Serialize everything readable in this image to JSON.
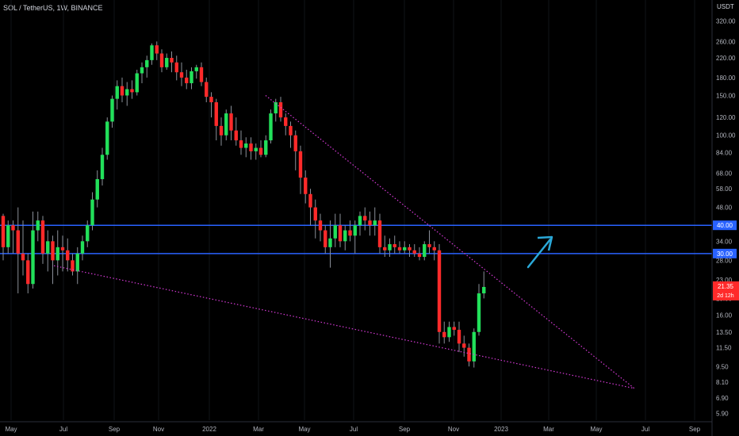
{
  "header": {
    "title": "SOL / TetherUS, 1W, BINANCE",
    "currency": "USDT"
  },
  "colors": {
    "up": "#22e05a",
    "down": "#ff2a2a",
    "level": "#2962ff",
    "trend": "#d63ad6",
    "arrow": "#2aa8d8",
    "grid": "#111318"
  },
  "price_label": {
    "value": "21.35",
    "countdown": "2d 12h"
  },
  "chart_data": {
    "type": "candlestick",
    "interval": "1W",
    "yscale": "log",
    "ylim": [
      5.5,
      360
    ],
    "y_ticks": [
      "320.00",
      "260.00",
      "220.00",
      "180.00",
      "150.00",
      "120.00",
      "100.00",
      "84.00",
      "68.00",
      "58.00",
      "48.00",
      "34.00",
      "28.00",
      "23.00",
      "19.00",
      "16.00",
      "13.50",
      "11.50",
      "9.50",
      "8.10",
      "6.90",
      "5.90"
    ],
    "x_ticks": [
      "May",
      "Jul",
      "Sep",
      "Nov",
      "2022",
      "Mar",
      "May",
      "Jul",
      "Sep",
      "Nov",
      "2023",
      "Mar",
      "May",
      "Jul",
      "Sep"
    ],
    "levels": [
      {
        "label": "40.00",
        "value": 40
      },
      {
        "label": "30.00",
        "value": 30
      }
    ],
    "candles": [
      [
        44,
        45,
        28,
        32
      ],
      [
        32,
        42,
        30,
        40
      ],
      [
        40,
        42,
        30,
        38
      ],
      [
        38,
        48,
        20,
        30
      ],
      [
        30,
        42,
        24,
        28
      ],
      [
        28,
        30,
        20,
        22
      ],
      [
        22,
        46,
        21,
        38
      ],
      [
        38,
        46,
        34,
        42
      ],
      [
        42,
        44,
        27,
        30
      ],
      [
        30,
        38,
        25,
        34
      ],
      [
        34,
        36,
        22,
        28
      ],
      [
        28,
        38,
        24,
        32
      ],
      [
        32,
        36,
        25,
        31
      ],
      [
        31,
        35,
        25,
        28
      ],
      [
        28,
        30,
        24,
        25
      ],
      [
        25,
        32,
        22,
        30
      ],
      [
        30,
        36,
        28,
        34
      ],
      [
        34,
        42,
        32,
        40
      ],
      [
        40,
        56,
        38,
        52
      ],
      [
        52,
        70,
        48,
        64
      ],
      [
        64,
        88,
        60,
        82
      ],
      [
        82,
        120,
        78,
        115
      ],
      [
        115,
        150,
        108,
        145
      ],
      [
        145,
        175,
        130,
        165
      ],
      [
        165,
        180,
        140,
        150
      ],
      [
        150,
        172,
        135,
        160
      ],
      [
        160,
        175,
        145,
        155
      ],
      [
        155,
        195,
        150,
        188
      ],
      [
        188,
        210,
        170,
        200
      ],
      [
        200,
        225,
        180,
        215
      ],
      [
        215,
        255,
        205,
        250
      ],
      [
        250,
        260,
        215,
        230
      ],
      [
        230,
        240,
        190,
        200
      ],
      [
        200,
        230,
        195,
        220
      ],
      [
        220,
        235,
        190,
        210
      ],
      [
        210,
        225,
        175,
        190
      ],
      [
        190,
        210,
        165,
        180
      ],
      [
        180,
        195,
        160,
        170
      ],
      [
        170,
        200,
        160,
        192
      ],
      [
        192,
        205,
        178,
        200
      ],
      [
        200,
        210,
        165,
        172
      ],
      [
        172,
        180,
        140,
        148
      ],
      [
        148,
        155,
        120,
        140
      ],
      [
        140,
        145,
        95,
        110
      ],
      [
        110,
        120,
        90,
        100
      ],
      [
        100,
        130,
        95,
        125
      ],
      [
        125,
        135,
        95,
        105
      ],
      [
        105,
        120,
        90,
        95
      ],
      [
        95,
        105,
        82,
        88
      ],
      [
        88,
        98,
        80,
        92
      ],
      [
        92,
        98,
        78,
        85
      ],
      [
        85,
        92,
        78,
        88
      ],
      [
        88,
        95,
        80,
        82
      ],
      [
        82,
        100,
        80,
        95
      ],
      [
        95,
        130,
        92,
        125
      ],
      [
        125,
        145,
        115,
        140
      ],
      [
        140,
        148,
        115,
        120
      ],
      [
        120,
        125,
        100,
        110
      ],
      [
        110,
        115,
        88,
        100
      ],
      [
        100,
        105,
        70,
        85
      ],
      [
        85,
        90,
        55,
        65
      ],
      [
        65,
        70,
        50,
        55
      ],
      [
        55,
        58,
        40,
        48
      ],
      [
        48,
        52,
        35,
        42
      ],
      [
        42,
        45,
        34,
        38
      ],
      [
        38,
        40,
        30,
        32
      ],
      [
        32,
        42,
        26,
        35
      ],
      [
        35,
        45,
        32,
        40
      ],
      [
        40,
        45,
        32,
        34
      ],
      [
        34,
        40,
        31,
        38
      ],
      [
        38,
        42,
        34,
        36
      ],
      [
        36,
        42,
        30,
        40
      ],
      [
        40,
        46,
        36,
        44
      ],
      [
        44,
        48,
        38,
        42
      ],
      [
        42,
        46,
        36,
        40
      ],
      [
        40,
        48,
        36,
        42
      ],
      [
        42,
        45,
        30,
        32
      ],
      [
        32,
        36,
        29,
        31
      ],
      [
        31,
        35,
        29,
        33
      ],
      [
        33,
        36,
        30,
        32
      ],
      [
        32,
        34,
        30,
        31
      ],
      [
        31,
        34,
        30,
        32
      ],
      [
        32,
        33,
        29,
        31
      ],
      [
        31,
        33,
        29,
        30
      ],
      [
        30,
        32,
        28,
        29
      ],
      [
        29,
        34,
        28,
        33
      ],
      [
        33,
        38,
        30,
        32
      ],
      [
        32,
        34,
        28,
        31
      ],
      [
        31,
        33,
        12,
        13.5
      ],
      [
        13.5,
        15,
        12,
        12.8
      ],
      [
        12.8,
        15,
        12.2,
        14.2
      ],
      [
        14.2,
        15,
        13,
        13.8
      ],
      [
        13.8,
        15,
        11,
        12
      ],
      [
        12,
        13,
        10.5,
        11.5
      ],
      [
        11.5,
        12,
        9.5,
        10
      ],
      [
        10,
        14,
        9.4,
        13.5
      ],
      [
        13.5,
        22,
        13,
        20
      ],
      [
        20,
        25,
        19,
        21.35
      ]
    ]
  }
}
